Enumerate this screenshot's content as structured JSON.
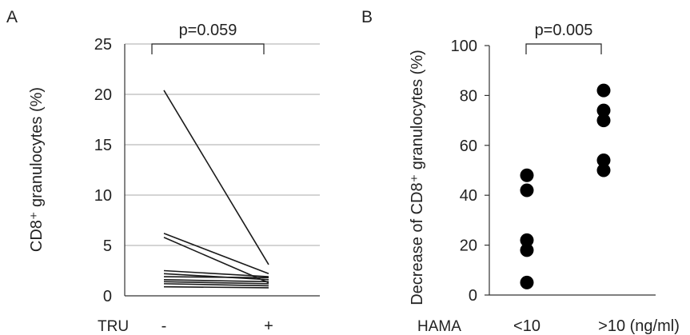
{
  "chart_data": [
    {
      "panel_label": "A",
      "type": "line",
      "ylabel": "CD8⁺ granulocytes (%)",
      "xlabel_prefix": "TRU",
      "categories": [
        "-",
        "+"
      ],
      "ylim": [
        0,
        25
      ],
      "yticks": [
        0,
        5,
        10,
        15,
        20,
        25
      ],
      "grid": true,
      "annotation": "p=0.059",
      "series": [
        {
          "values": [
            20.4,
            3.1
          ]
        },
        {
          "values": [
            6.2,
            2.2
          ]
        },
        {
          "values": [
            5.8,
            1.3
          ]
        },
        {
          "values": [
            2.5,
            1.9
          ]
        },
        {
          "values": [
            2.2,
            1.6
          ]
        },
        {
          "values": [
            1.9,
            1.8
          ]
        },
        {
          "values": [
            1.6,
            1.4
          ]
        },
        {
          "values": [
            1.4,
            1.2
          ]
        },
        {
          "values": [
            1.2,
            1.0
          ]
        },
        {
          "values": [
            0.9,
            0.8
          ]
        }
      ]
    },
    {
      "panel_label": "B",
      "type": "scatter",
      "ylabel": "Decrease of CD8⁺ granulocytes (%)",
      "xlabel_prefix": "HAMA",
      "categories": [
        "<10",
        ">10 (ng/ml)"
      ],
      "ylim": [
        0,
        100
      ],
      "yticks": [
        0,
        20,
        40,
        60,
        80,
        100
      ],
      "grid": false,
      "annotation": "p=0.005",
      "points": [
        {
          "group": 0,
          "y": 48
        },
        {
          "group": 0,
          "y": 42
        },
        {
          "group": 0,
          "y": 22
        },
        {
          "group": 0,
          "y": 18
        },
        {
          "group": 0,
          "y": 5
        },
        {
          "group": 1,
          "y": 82
        },
        {
          "group": 1,
          "y": 74
        },
        {
          "group": 1,
          "y": 70
        },
        {
          "group": 1,
          "y": 54
        },
        {
          "group": 1,
          "y": 50
        }
      ]
    }
  ]
}
